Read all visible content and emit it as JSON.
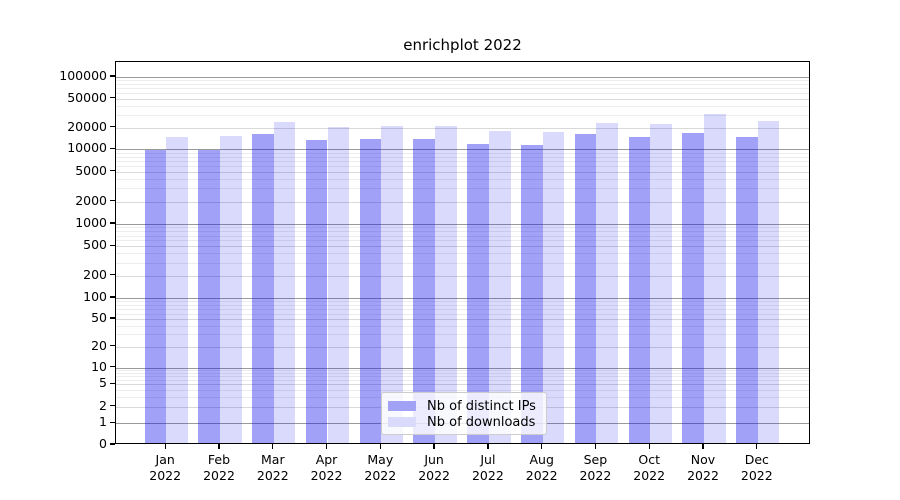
{
  "title": "enrichplot 2022",
  "chart_data": {
    "type": "bar",
    "title": "enrichplot 2022",
    "categories": [
      "Jan 2022",
      "Feb 2022",
      "Mar 2022",
      "Apr 2022",
      "May 2022",
      "Jun 2022",
      "Jul 2022",
      "Aug 2022",
      "Sep 2022",
      "Oct 2022",
      "Nov 2022",
      "Dec 2022"
    ],
    "series": [
      {
        "name": "Nb of distinct IPs",
        "color": "rgba(8,8,235,0.38)",
        "legend_color": "#a1a1f6",
        "values": [
          9300,
          9300,
          15300,
          12700,
          13100,
          12900,
          11300,
          10900,
          15200,
          14000,
          16000,
          13700
        ]
      },
      {
        "name": "Nb of downloads",
        "color": "rgba(8,8,235,0.15)",
        "legend_color": "#dadafc",
        "values": [
          13800,
          14200,
          22500,
          19000,
          19600,
          19500,
          16800,
          16400,
          21800,
          21000,
          28600,
          23200
        ]
      }
    ],
    "xlabel": "",
    "ylabel": "",
    "yscale": "symlog",
    "y_ticks": [
      0,
      1,
      2,
      5,
      10,
      20,
      50,
      100,
      200,
      500,
      1000,
      2000,
      5000,
      10000,
      20000,
      50000,
      100000
    ],
    "ylim": [
      0,
      160000
    ],
    "grid": "both",
    "legend_position": "lower center"
  }
}
